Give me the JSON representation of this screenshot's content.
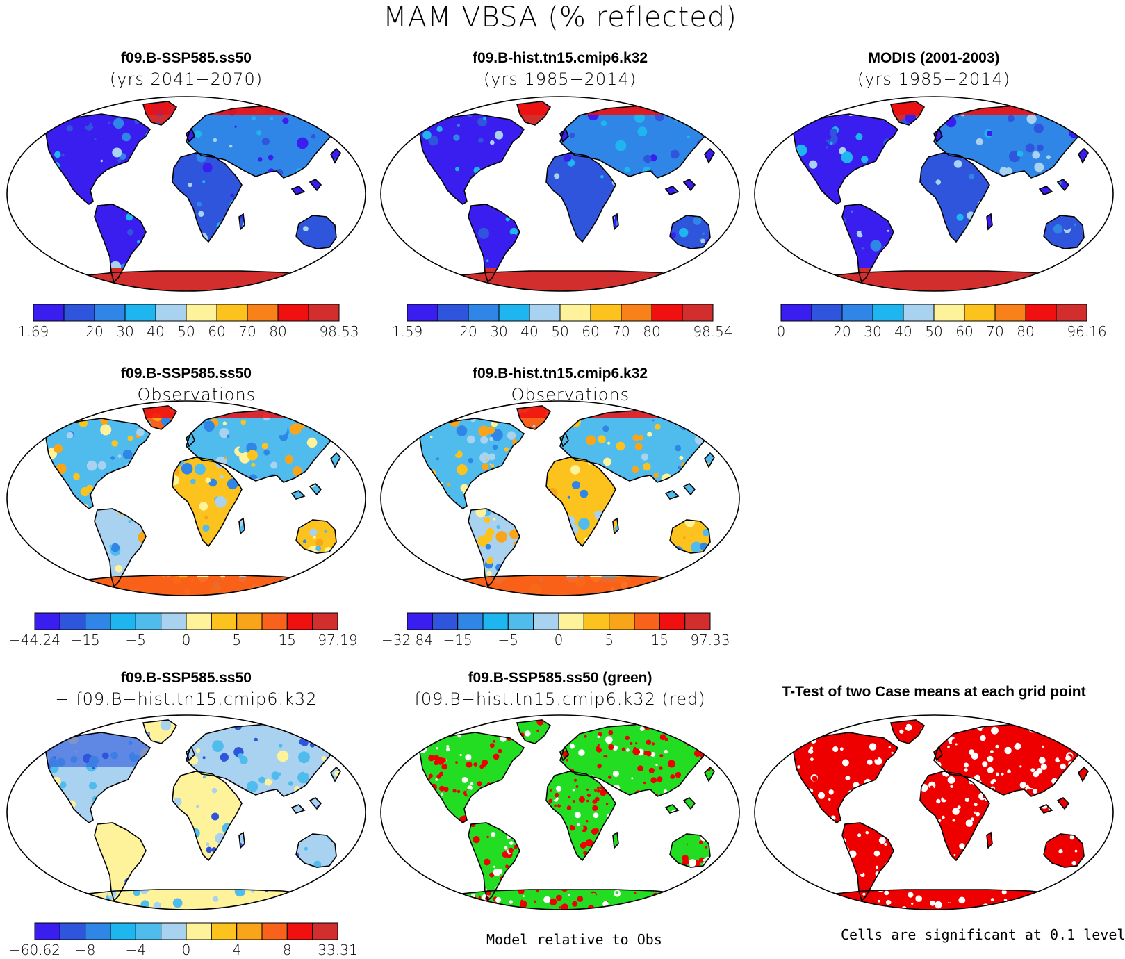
{
  "title": "MAM VBSA (% reflected)",
  "colors": {
    "abs": [
      "#3a1ef0",
      "#2f55dc",
      "#2f86e6",
      "#1fb6f0",
      "#a8d2f0",
      "#fef39a",
      "#fcc21e",
      "#f8811a",
      "#f01010",
      "#d22e2e"
    ],
    "diff": [
      "#3a1ef0",
      "#2f55dc",
      "#2f86e6",
      "#1fb6f0",
      "#50bced",
      "#a8d2f0",
      "#fef39a",
      "#fcc21e",
      "#f8a51a",
      "#f8621a",
      "#f01010",
      "#d22e2e"
    ],
    "green": "#22dd22",
    "red": "#ee0000"
  },
  "panels": [
    {
      "id": "case1",
      "title": "f09.B-SSP585.ss50",
      "subtitle": "(yrs 2041−2070)",
      "style": "abs",
      "colorbar": "abs",
      "ticks": [
        "1.69",
        "20",
        "30",
        "40",
        "50",
        "60",
        "70",
        "80",
        "98.53"
      ],
      "tick_slots": [
        0,
        2,
        3,
        4,
        5,
        6,
        7,
        8,
        10
      ]
    },
    {
      "id": "case2",
      "title": "f09.B-hist.tn15.cmip6.k32",
      "subtitle": "(yrs 1985−2014)",
      "style": "abs",
      "colorbar": "abs",
      "ticks": [
        "1.59",
        "20",
        "30",
        "40",
        "50",
        "60",
        "70",
        "80",
        "98.54"
      ],
      "tick_slots": [
        0,
        2,
        3,
        4,
        5,
        6,
        7,
        8,
        10
      ]
    },
    {
      "id": "obs",
      "title": "MODIS (2001-2003)",
      "subtitle": "(yrs 1985−2014)",
      "style": "abs",
      "colorbar": "abs",
      "ticks": [
        "0",
        "20",
        "30",
        "40",
        "50",
        "60",
        "70",
        "80",
        "96.16"
      ],
      "tick_slots": [
        0,
        2,
        3,
        4,
        5,
        6,
        7,
        8,
        10
      ]
    },
    {
      "id": "case1-obs",
      "title": "f09.B-SSP585.ss50",
      "subtitle": "− Observations",
      "style": "diffobs",
      "colorbar": "diff",
      "ticks": [
        "−44.24",
        "−15",
        "−5",
        "0",
        "5",
        "15",
        "97.19"
      ],
      "tick_slots": [
        0,
        2,
        4,
        6,
        8,
        10,
        12
      ]
    },
    {
      "id": "case2-obs",
      "title": "f09.B-hist.tn15.cmip6.k32",
      "subtitle": "− Observations",
      "style": "diffobs",
      "colorbar": "diff",
      "ticks": [
        "−32.84",
        "−15",
        "−5",
        "0",
        "5",
        "15",
        "97.33"
      ],
      "tick_slots": [
        0,
        2,
        4,
        6,
        8,
        10,
        12
      ]
    },
    {
      "id": "case1-case2",
      "title": "f09.B-SSP585.ss50",
      "subtitle": "− f09.B−hist.tn15.cmip6.k32",
      "style": "diffcase",
      "colorbar": "diff",
      "ticks": [
        "−60.62",
        "−8",
        "−4",
        "0",
        "4",
        "8",
        "33.31"
      ],
      "tick_slots": [
        0,
        2,
        4,
        6,
        8,
        10,
        12
      ]
    },
    {
      "id": "model-rel",
      "title": "f09.B-SSP585.ss50 (green)",
      "subtitle": "f09.B−hist.tn15.cmip6.k32 (red)",
      "style": "greenred",
      "colorbar": null,
      "ticks": [],
      "tick_slots": []
    },
    {
      "id": "ttest",
      "title": "T-Test of two Case means at each grid point",
      "subtitle": "",
      "style": "sig",
      "colorbar": null,
      "ticks": [],
      "tick_slots": []
    }
  ],
  "footer": {
    "model_relative": "Model relative to Obs",
    "significance": "Cells are significant at 0.1 level"
  }
}
